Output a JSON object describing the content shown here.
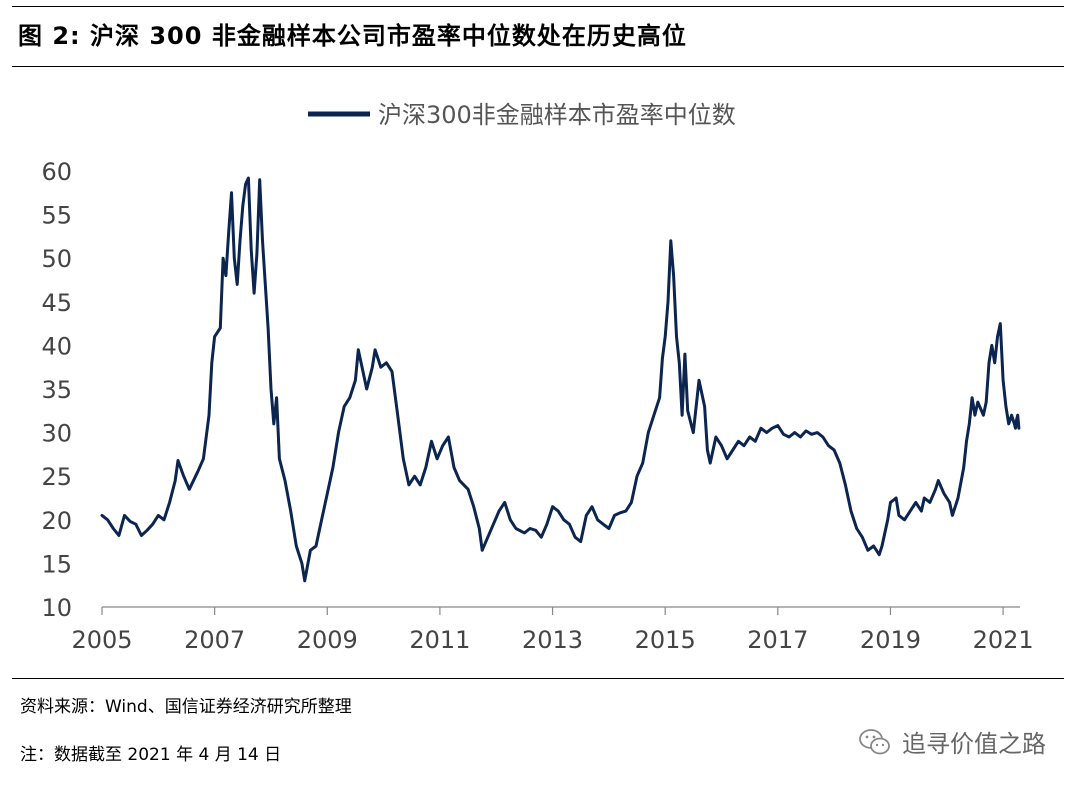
{
  "figure": {
    "title": "图  2:  沪深 300 非金融样本公司市盈率中位数处在历史高位",
    "source": "资料来源：Wind、国信证券经济研究所整理",
    "note": "注：数据截至 2021 年 4 月 14 日",
    "watermark": "追寻价值之路",
    "watermark_icon": "wechat-icon"
  },
  "chart_data": {
    "type": "line",
    "title": "",
    "xlabel": "",
    "ylabel": "",
    "legend_position": "top-center",
    "grid": false,
    "xlim": [
      2005.0,
      2021.3
    ],
    "ylim": [
      10,
      60
    ],
    "x_ticks": [
      2005,
      2007,
      2009,
      2011,
      2013,
      2015,
      2017,
      2019,
      2021
    ],
    "x_tick_labels": [
      "2005",
      "2007",
      "2009",
      "2011",
      "2013",
      "2015",
      "2017",
      "2019",
      "2021"
    ],
    "y_ticks": [
      10,
      15,
      20,
      25,
      30,
      35,
      40,
      45,
      50,
      55,
      60
    ],
    "y_tick_labels": [
      "10",
      "15",
      "20",
      "25",
      "30",
      "35",
      "40",
      "45",
      "50",
      "55",
      "60"
    ],
    "series": [
      {
        "name": "沪深300非金融样本市盈率中位数",
        "color": "#0b2550",
        "points": [
          [
            2005.0,
            20.5
          ],
          [
            2005.1,
            20.0
          ],
          [
            2005.2,
            19.0
          ],
          [
            2005.3,
            18.2
          ],
          [
            2005.4,
            20.5
          ],
          [
            2005.5,
            19.8
          ],
          [
            2005.6,
            19.5
          ],
          [
            2005.7,
            18.2
          ],
          [
            2005.8,
            18.8
          ],
          [
            2005.9,
            19.5
          ],
          [
            2006.0,
            20.5
          ],
          [
            2006.1,
            20.0
          ],
          [
            2006.2,
            22.0
          ],
          [
            2006.3,
            24.5
          ],
          [
            2006.35,
            26.8
          ],
          [
            2006.45,
            25.0
          ],
          [
            2006.55,
            23.5
          ],
          [
            2006.7,
            25.5
          ],
          [
            2006.8,
            27.0
          ],
          [
            2006.9,
            32.0
          ],
          [
            2006.95,
            38.0
          ],
          [
            2007.0,
            41.0
          ],
          [
            2007.1,
            42.0
          ],
          [
            2007.15,
            50.0
          ],
          [
            2007.2,
            48.0
          ],
          [
            2007.25,
            53.0
          ],
          [
            2007.3,
            57.5
          ],
          [
            2007.35,
            50.0
          ],
          [
            2007.4,
            47.0
          ],
          [
            2007.45,
            52.0
          ],
          [
            2007.5,
            56.0
          ],
          [
            2007.55,
            58.5
          ],
          [
            2007.6,
            59.2
          ],
          [
            2007.65,
            51.0
          ],
          [
            2007.7,
            46.0
          ],
          [
            2007.75,
            50.5
          ],
          [
            2007.8,
            59.0
          ],
          [
            2007.85,
            52.0
          ],
          [
            2007.9,
            47.0
          ],
          [
            2007.95,
            42.0
          ],
          [
            2008.0,
            35.0
          ],
          [
            2008.05,
            31.0
          ],
          [
            2008.1,
            34.0
          ],
          [
            2008.15,
            27.0
          ],
          [
            2008.25,
            24.5
          ],
          [
            2008.35,
            21.0
          ],
          [
            2008.45,
            17.0
          ],
          [
            2008.55,
            15.0
          ],
          [
            2008.6,
            13.0
          ],
          [
            2008.7,
            16.5
          ],
          [
            2008.8,
            17.0
          ],
          [
            2008.9,
            20.0
          ],
          [
            2009.0,
            23.0
          ],
          [
            2009.1,
            26.0
          ],
          [
            2009.2,
            30.0
          ],
          [
            2009.3,
            33.0
          ],
          [
            2009.4,
            34.0
          ],
          [
            2009.5,
            36.0
          ],
          [
            2009.55,
            39.5
          ],
          [
            2009.6,
            38.0
          ],
          [
            2009.7,
            35.0
          ],
          [
            2009.8,
            37.5
          ],
          [
            2009.85,
            39.5
          ],
          [
            2009.95,
            37.5
          ],
          [
            2010.05,
            38.0
          ],
          [
            2010.15,
            37.0
          ],
          [
            2010.25,
            32.0
          ],
          [
            2010.35,
            27.0
          ],
          [
            2010.45,
            24.0
          ],
          [
            2010.55,
            25.0
          ],
          [
            2010.65,
            24.0
          ],
          [
            2010.75,
            26.0
          ],
          [
            2010.85,
            29.0
          ],
          [
            2010.95,
            27.0
          ],
          [
            2011.05,
            28.5
          ],
          [
            2011.15,
            29.5
          ],
          [
            2011.25,
            26.0
          ],
          [
            2011.35,
            24.5
          ],
          [
            2011.5,
            23.5
          ],
          [
            2011.6,
            21.5
          ],
          [
            2011.7,
            19.0
          ],
          [
            2011.75,
            16.5
          ],
          [
            2011.85,
            18.0
          ],
          [
            2011.95,
            19.5
          ],
          [
            2012.05,
            21.0
          ],
          [
            2012.15,
            22.0
          ],
          [
            2012.25,
            20.0
          ],
          [
            2012.35,
            19.0
          ],
          [
            2012.5,
            18.5
          ],
          [
            2012.6,
            19.0
          ],
          [
            2012.7,
            18.8
          ],
          [
            2012.8,
            18.0
          ],
          [
            2012.9,
            19.5
          ],
          [
            2013.0,
            21.5
          ],
          [
            2013.1,
            21.0
          ],
          [
            2013.2,
            20.0
          ],
          [
            2013.3,
            19.5
          ],
          [
            2013.4,
            18.0
          ],
          [
            2013.5,
            17.5
          ],
          [
            2013.6,
            20.5
          ],
          [
            2013.7,
            21.5
          ],
          [
            2013.8,
            20.0
          ],
          [
            2013.9,
            19.5
          ],
          [
            2014.0,
            19.0
          ],
          [
            2014.1,
            20.5
          ],
          [
            2014.2,
            20.8
          ],
          [
            2014.3,
            21.0
          ],
          [
            2014.4,
            22.0
          ],
          [
            2014.5,
            25.0
          ],
          [
            2014.6,
            26.5
          ],
          [
            2014.7,
            30.0
          ],
          [
            2014.8,
            32.0
          ],
          [
            2014.9,
            34.0
          ],
          [
            2014.95,
            38.5
          ],
          [
            2015.0,
            41.0
          ],
          [
            2015.05,
            45.0
          ],
          [
            2015.1,
            52.0
          ],
          [
            2015.15,
            48.0
          ],
          [
            2015.2,
            41.0
          ],
          [
            2015.25,
            38.0
          ],
          [
            2015.3,
            32.0
          ],
          [
            2015.35,
            39.0
          ],
          [
            2015.4,
            32.5
          ],
          [
            2015.5,
            30.0
          ],
          [
            2015.6,
            36.0
          ],
          [
            2015.7,
            33.0
          ],
          [
            2015.75,
            28.0
          ],
          [
            2015.8,
            26.5
          ],
          [
            2015.9,
            29.5
          ],
          [
            2016.0,
            28.5
          ],
          [
            2016.1,
            27.0
          ],
          [
            2016.2,
            28.0
          ],
          [
            2016.3,
            29.0
          ],
          [
            2016.4,
            28.5
          ],
          [
            2016.5,
            29.5
          ],
          [
            2016.6,
            29.0
          ],
          [
            2016.7,
            30.5
          ],
          [
            2016.8,
            30.0
          ],
          [
            2016.9,
            30.5
          ],
          [
            2017.0,
            30.8
          ],
          [
            2017.1,
            29.8
          ],
          [
            2017.2,
            29.5
          ],
          [
            2017.3,
            30.0
          ],
          [
            2017.4,
            29.5
          ],
          [
            2017.5,
            30.2
          ],
          [
            2017.6,
            29.8
          ],
          [
            2017.7,
            30.0
          ],
          [
            2017.8,
            29.5
          ],
          [
            2017.9,
            28.5
          ],
          [
            2018.0,
            28.0
          ],
          [
            2018.1,
            26.5
          ],
          [
            2018.2,
            24.0
          ],
          [
            2018.3,
            21.0
          ],
          [
            2018.4,
            19.0
          ],
          [
            2018.5,
            18.0
          ],
          [
            2018.6,
            16.5
          ],
          [
            2018.7,
            17.0
          ],
          [
            2018.8,
            16.0
          ],
          [
            2018.85,
            17.0
          ],
          [
            2018.95,
            20.0
          ],
          [
            2019.0,
            22.0
          ],
          [
            2019.1,
            22.5
          ],
          [
            2019.15,
            20.5
          ],
          [
            2019.25,
            20.0
          ],
          [
            2019.35,
            21.0
          ],
          [
            2019.45,
            22.0
          ],
          [
            2019.55,
            21.0
          ],
          [
            2019.6,
            22.5
          ],
          [
            2019.7,
            22.0
          ],
          [
            2019.8,
            23.5
          ],
          [
            2019.85,
            24.5
          ],
          [
            2019.95,
            23.0
          ],
          [
            2020.05,
            22.0
          ],
          [
            2020.1,
            20.5
          ],
          [
            2020.2,
            22.5
          ],
          [
            2020.3,
            26.0
          ],
          [
            2020.35,
            29.0
          ],
          [
            2020.4,
            31.0
          ],
          [
            2020.45,
            34.0
          ],
          [
            2020.5,
            32.0
          ],
          [
            2020.55,
            33.5
          ],
          [
            2020.65,
            32.0
          ],
          [
            2020.7,
            33.5
          ],
          [
            2020.75,
            38.0
          ],
          [
            2020.8,
            40.0
          ],
          [
            2020.85,
            38.0
          ],
          [
            2020.9,
            41.0
          ],
          [
            2020.95,
            42.5
          ],
          [
            2021.0,
            36.0
          ],
          [
            2021.05,
            33.0
          ],
          [
            2021.1,
            31.0
          ],
          [
            2021.15,
            32.0
          ],
          [
            2021.2,
            31.0
          ],
          [
            2021.22,
            30.5
          ],
          [
            2021.24,
            31.5
          ],
          [
            2021.26,
            32.0
          ],
          [
            2021.28,
            30.5
          ]
        ]
      }
    ]
  }
}
